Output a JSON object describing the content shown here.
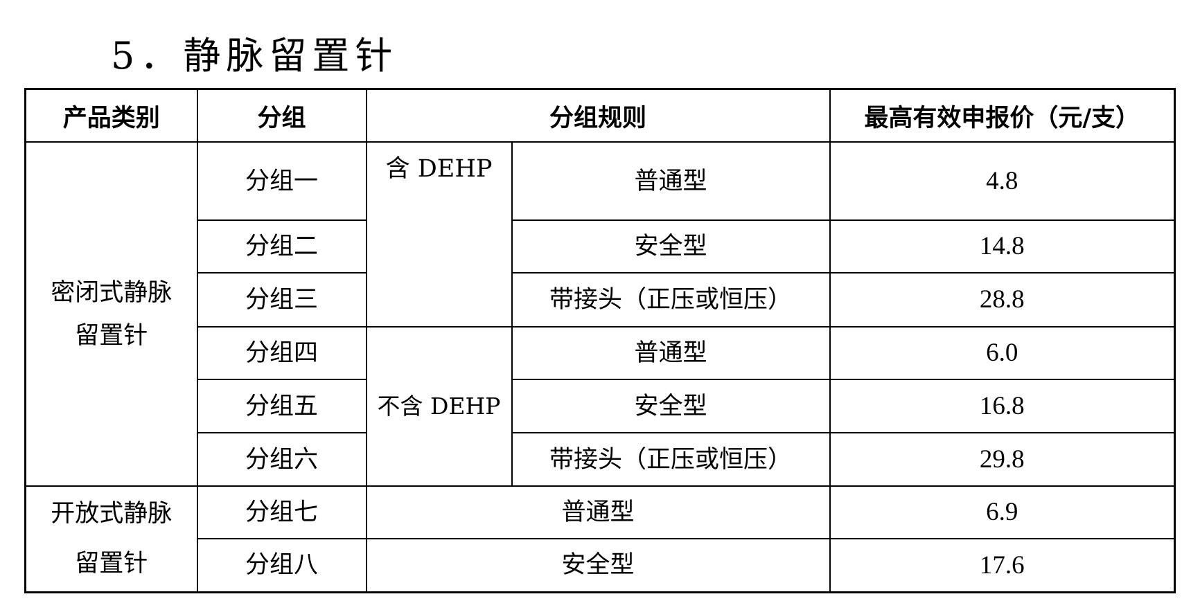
{
  "title": "5．静脉留置针",
  "headers": [
    "产品类别",
    "分组",
    "分组规则",
    "最高有效申报价（元/支）"
  ],
  "categories": {
    "closed": "密闭式静脉留置针",
    "open": "开放式静脉留置针"
  },
  "rules": {
    "with_dehp": "含 DEHP",
    "without_dehp": "不含 DEHP"
  },
  "rows": [
    {
      "group": "分组一",
      "type": "普通型",
      "price": "4.8"
    },
    {
      "group": "分组二",
      "type": "安全型",
      "price": "14.8"
    },
    {
      "group": "分组三",
      "type": "带接头（正压或恒压）",
      "price": "28.8"
    },
    {
      "group": "分组四",
      "type": "普通型",
      "price": "6.0"
    },
    {
      "group": "分组五",
      "type": "安全型",
      "price": "16.8"
    },
    {
      "group": "分组六",
      "type": "带接头（正压或恒压）",
      "price": "29.8"
    },
    {
      "group": "分组七",
      "type": "普通型",
      "price": "6.9"
    },
    {
      "group": "分组八",
      "type": "安全型",
      "price": "17.6"
    }
  ]
}
